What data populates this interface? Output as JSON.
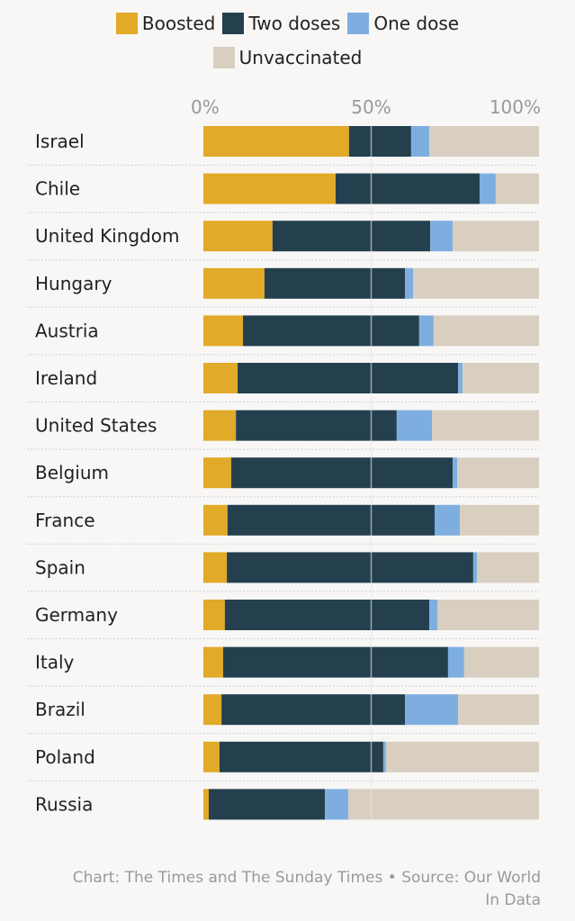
{
  "chart_data": {
    "type": "bar",
    "orientation": "horizontal",
    "stacked": true,
    "categories": [
      "Israel",
      "Chile",
      "United Kingdom",
      "Hungary",
      "Austria",
      "Ireland",
      "United States",
      "Belgium",
      "France",
      "Spain",
      "Germany",
      "Italy",
      "Brazil",
      "Poland",
      "Russia"
    ],
    "series": [
      {
        "name": "Boosted",
        "color": "#e1aa28",
        "values": [
          43.4,
          39.4,
          20.6,
          18.2,
          11.8,
          10.2,
          9.7,
          8.3,
          7.2,
          7.0,
          6.4,
          5.9,
          5.4,
          4.8,
          1.6
        ]
      },
      {
        "name": "Two doses",
        "color": "#24404f",
        "values": [
          18.5,
          42.9,
          47.0,
          41.9,
          52.5,
          65.7,
          47.9,
          66.0,
          61.7,
          73.4,
          60.9,
          67.0,
          54.7,
          48.8,
          34.6
        ]
      },
      {
        "name": "One dose",
        "color": "#7eaee0",
        "values": [
          5.4,
          4.8,
          6.7,
          2.4,
          4.3,
          1.3,
          10.5,
          1.3,
          7.5,
          1.1,
          2.4,
          4.8,
          15.8,
          0.8,
          7.0
        ]
      },
      {
        "name": "Unvaccinated",
        "color": "#d8cfc1",
        "values": [
          32.7,
          12.9,
          25.7,
          37.5,
          31.4,
          22.8,
          31.9,
          24.4,
          23.6,
          18.5,
          30.3,
          22.3,
          24.1,
          45.6,
          56.8
        ]
      }
    ],
    "xlim": [
      0,
      100
    ],
    "xticks": [
      "0%",
      "50%",
      "100%"
    ],
    "legend_position": "top",
    "grid": false
  },
  "footer": {
    "line1": "Chart: The Times and The Sunday Times • Source: Our World",
    "line2": "In Data"
  }
}
